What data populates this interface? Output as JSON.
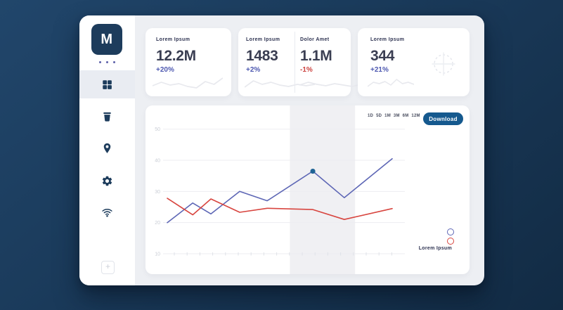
{
  "window": {
    "logo_letter": "M"
  },
  "sidebar": {
    "icons": [
      {
        "name": "dashboard-grid-icon",
        "active": true
      },
      {
        "name": "trash-icon",
        "active": false
      },
      {
        "name": "location-pin-icon",
        "active": false
      },
      {
        "name": "settings-gear-icon",
        "active": false
      },
      {
        "name": "wifi-icon",
        "active": false
      },
      {
        "name": "add-icon",
        "active": false
      }
    ]
  },
  "stats": [
    {
      "label": "Lorem Ipsum",
      "value": "12.2M",
      "delta": "+20%",
      "trend": "up",
      "spark": [
        14,
        9,
        13,
        11,
        15,
        17,
        8,
        12,
        3
      ]
    },
    {
      "label": "Lorem Ipsum",
      "value": "1483",
      "delta": "+2%",
      "trend": "up",
      "spark": [
        16,
        7,
        12,
        9,
        13,
        15,
        12,
        14,
        12
      ]
    },
    {
      "label": "Dolor Amet",
      "value": "1.1M",
      "delta": "-1%",
      "trend": "down",
      "spark": [
        13,
        9,
        12,
        14,
        11,
        13,
        15,
        12,
        13
      ]
    },
    {
      "label": "Lorem Ipsum",
      "value": "344",
      "delta": "+21%",
      "trend": "up",
      "spark": [
        15,
        9,
        11,
        8,
        13,
        5,
        11,
        9,
        12
      ]
    }
  ],
  "chart": {
    "ranges": [
      "1D",
      "5D",
      "1M",
      "3M",
      "6M",
      "12M"
    ],
    "download_label": "Download",
    "legend_label": "Lorem Ipsum"
  },
  "chart_data": {
    "type": "line",
    "x": [
      0,
      0.113,
      0.194,
      0.322,
      0.444,
      0.647,
      0.787,
      1.0
    ],
    "x_unit": "fraction-of-axis (no x tick labels shown)",
    "series": [
      {
        "name": "series-blue",
        "color": "#5d66b5",
        "values": [
          20,
          26.3,
          22.8,
          30,
          27,
          36.5,
          28,
          40.5
        ],
        "marker_index": 5
      },
      {
        "name": "series-red",
        "color": "#d8453f",
        "values": [
          27.8,
          22.5,
          27.6,
          23.3,
          24.6,
          24.2,
          21,
          24.5
        ]
      }
    ],
    "yticks": [
      10,
      20,
      30,
      40,
      50
    ],
    "ylim": [
      10,
      50
    ],
    "highlight_band_x": [
      0.545,
      0.835
    ],
    "grid": "horizontal-only",
    "legend_position": "bottom-right",
    "title": "",
    "xlabel": "",
    "ylabel": ""
  },
  "colors": {
    "accent_navy": "#1d3c5c",
    "delta_up": "#4d58b0",
    "delta_down": "#cc423f",
    "spark": "#e8e9ee",
    "download_bg": "#15598e",
    "marker": "#1f6394",
    "grid": "#ededf1",
    "axis_label": "#c9cdd5",
    "band": "#f0f0f3",
    "tick": "#dfe2e8"
  }
}
